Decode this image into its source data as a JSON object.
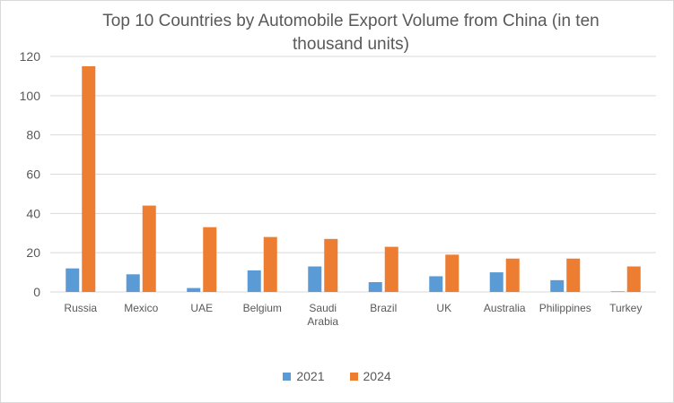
{
  "colors": {
    "series_2021": "#5b9bd5",
    "series_2024": "#ed7d31",
    "gridline": "#d9d9d9",
    "text": "#595959"
  },
  "chart_data": {
    "type": "bar",
    "title": "Top 10 Countries by Automobile Export Volume from China (in ten thousand units)",
    "xlabel": "",
    "ylabel": "",
    "categories": [
      "Russia",
      "Mexico",
      "UAE",
      "Belgium",
      "Saudi Arabia",
      "Brazil",
      "UK",
      "Australia",
      "Philippines",
      "Turkey"
    ],
    "series": [
      {
        "name": "2021",
        "values": [
          12,
          9,
          2,
          11,
          13,
          5,
          8,
          10,
          6,
          0.3
        ]
      },
      {
        "name": "2024",
        "values": [
          115,
          44,
          33,
          28,
          27,
          23,
          19,
          17,
          17,
          13
        ]
      }
    ],
    "ylim": [
      0,
      120
    ],
    "yticks": [
      0,
      20,
      40,
      60,
      80,
      100,
      120
    ],
    "grid": true,
    "legend_position": "bottom"
  }
}
